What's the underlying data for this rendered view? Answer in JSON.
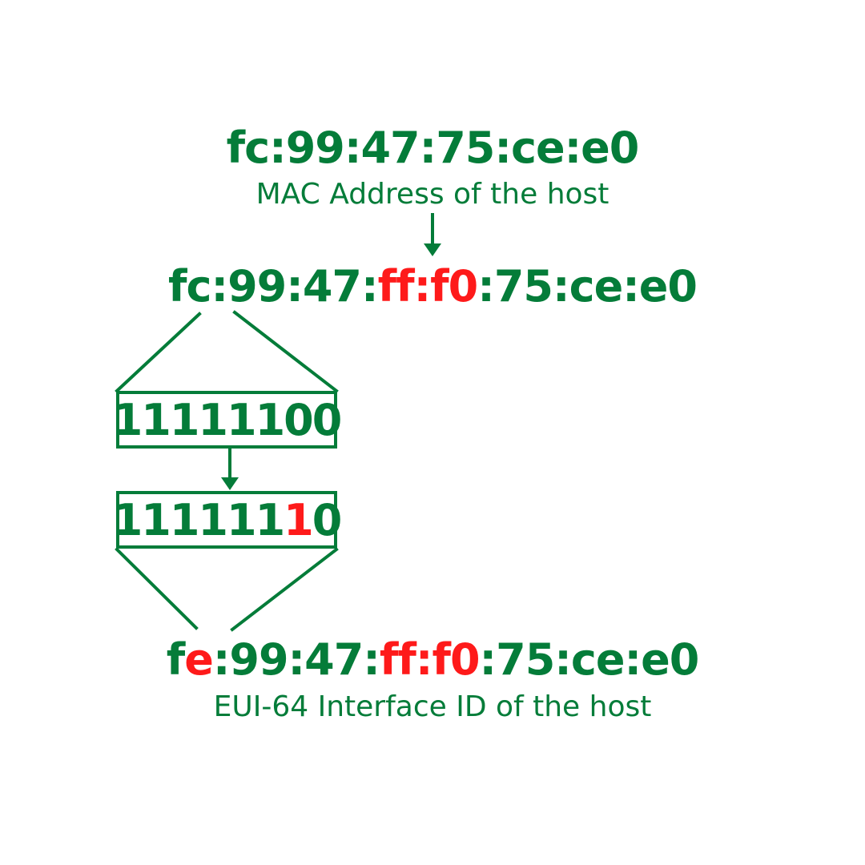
{
  "colors": {
    "base": "#047c39",
    "highlight": "#fe1a1a"
  },
  "mac": {
    "value": "fc:99:47:75:ce:e0",
    "caption": "MAC Address of the host"
  },
  "inserted": {
    "prefix": "fc:99:47:",
    "inserted_bytes": "ff:f0",
    "suffix": ":75:ce:e0"
  },
  "first_byte_bits": {
    "before": "11111100",
    "after_prefix": "111111",
    "after_flipped": "1",
    "after_suffix": "0"
  },
  "eui64": {
    "part1": "f",
    "part2_flipped": "e",
    "part3": ":99:47:",
    "part4_inserted": "ff:f0",
    "part5": ":75:ce:e0",
    "caption": "EUI-64 Interface ID of the host"
  }
}
